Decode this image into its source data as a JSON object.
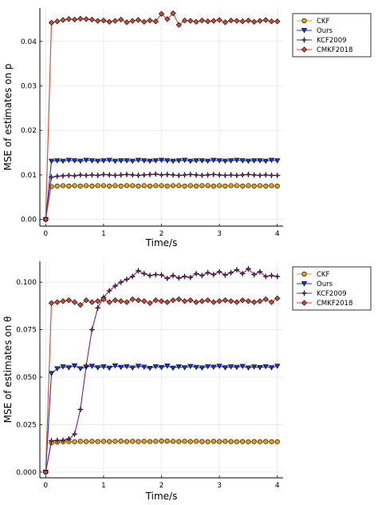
{
  "chart_data": [
    {
      "type": "line",
      "xlabel": "Time/s",
      "ylabel": "MSE of estimates on p",
      "xlim": [
        -0.1,
        4.1
      ],
      "ylim": [
        -0.0015,
        0.0475
      ],
      "xticks": [
        "0",
        "1",
        "2",
        "3",
        "4"
      ],
      "yticks": [
        "0.00",
        "0.01",
        "0.02",
        "0.03",
        "0.04"
      ],
      "ytick_values": [
        0,
        0.01,
        0.02,
        0.03,
        0.04
      ],
      "grid": true,
      "legend_position": "outside-top-right",
      "series": [
        {
          "name": "CKF",
          "color": "#e3a01c",
          "marker": "circle",
          "x": [
            0,
            0.1,
            0.2,
            0.3,
            0.4,
            0.5,
            0.6,
            0.7,
            0.8,
            0.9,
            1.0,
            1.1,
            1.2,
            1.3,
            1.4,
            1.5,
            1.6,
            1.7,
            1.8,
            1.9,
            2.0,
            2.1,
            2.2,
            2.3,
            2.4,
            2.5,
            2.6,
            2.7,
            2.8,
            2.9,
            3.0,
            3.1,
            3.2,
            3.3,
            3.4,
            3.5,
            3.6,
            3.7,
            3.8,
            3.9,
            4.0
          ],
          "y": [
            0,
            0.0074,
            0.0075,
            0.0076,
            0.0075,
            0.0076,
            0.0075,
            0.0076,
            0.0075,
            0.0076,
            0.0076,
            0.0075,
            0.0076,
            0.0075,
            0.0076,
            0.0076,
            0.0075,
            0.0076,
            0.0075,
            0.0076,
            0.0076,
            0.0075,
            0.0076,
            0.0076,
            0.0075,
            0.0076,
            0.0075,
            0.0076,
            0.0076,
            0.0075,
            0.0076,
            0.0075,
            0.0076,
            0.0076,
            0.0075,
            0.0076,
            0.0075,
            0.0076,
            0.0075,
            0.0076,
            0.0075
          ]
        },
        {
          "name": "Ours",
          "color": "#1f35c8",
          "marker": "triangle-down",
          "x": [
            0,
            0.1,
            0.2,
            0.3,
            0.4,
            0.5,
            0.6,
            0.7,
            0.8,
            0.9,
            1.0,
            1.1,
            1.2,
            1.3,
            1.4,
            1.5,
            1.6,
            1.7,
            1.8,
            1.9,
            2.0,
            2.1,
            2.2,
            2.3,
            2.4,
            2.5,
            2.6,
            2.7,
            2.8,
            2.9,
            3.0,
            3.1,
            3.2,
            3.3,
            3.4,
            3.5,
            3.6,
            3.7,
            3.8,
            3.9,
            4.0
          ],
          "y": [
            0,
            0.0131,
            0.0132,
            0.0131,
            0.0133,
            0.0132,
            0.0131,
            0.0133,
            0.0132,
            0.0131,
            0.0132,
            0.0133,
            0.0131,
            0.0132,
            0.0132,
            0.0131,
            0.0133,
            0.0132,
            0.0131,
            0.0132,
            0.0133,
            0.0132,
            0.0131,
            0.0132,
            0.0133,
            0.0131,
            0.0132,
            0.0132,
            0.0131,
            0.0133,
            0.0132,
            0.0131,
            0.0132,
            0.0133,
            0.0132,
            0.0131,
            0.0132,
            0.0132,
            0.0131,
            0.0133,
            0.0132
          ]
        },
        {
          "name": "KCF2009",
          "color": "#7a1f7a",
          "marker": "star",
          "x": [
            0,
            0.1,
            0.2,
            0.3,
            0.4,
            0.5,
            0.6,
            0.7,
            0.8,
            0.9,
            1.0,
            1.1,
            1.2,
            1.3,
            1.4,
            1.5,
            1.6,
            1.7,
            1.8,
            1.9,
            2.0,
            2.1,
            2.2,
            2.3,
            2.4,
            2.5,
            2.6,
            2.7,
            2.8,
            2.9,
            3.0,
            3.1,
            3.2,
            3.3,
            3.4,
            3.5,
            3.6,
            3.7,
            3.8,
            3.9,
            4.0
          ],
          "y": [
            0,
            0.0095,
            0.0097,
            0.0098,
            0.0099,
            0.0098,
            0.01,
            0.0099,
            0.01,
            0.0099,
            0.0101,
            0.01,
            0.0099,
            0.01,
            0.0101,
            0.01,
            0.0099,
            0.01,
            0.0101,
            0.0102,
            0.01,
            0.0101,
            0.01,
            0.0099,
            0.01,
            0.0101,
            0.01,
            0.0099,
            0.01,
            0.0101,
            0.01,
            0.0099,
            0.01,
            0.0099,
            0.01,
            0.0101,
            0.01,
            0.0099,
            0.01,
            0.0099,
            0.0099
          ]
        },
        {
          "name": "CMKF2018",
          "color": "#cf4736",
          "marker": "diamond",
          "x": [
            0,
            0.1,
            0.2,
            0.3,
            0.4,
            0.5,
            0.6,
            0.7,
            0.8,
            0.9,
            1.0,
            1.1,
            1.2,
            1.3,
            1.4,
            1.5,
            1.6,
            1.7,
            1.8,
            1.9,
            2.0,
            2.1,
            2.2,
            2.3,
            2.4,
            2.5,
            2.6,
            2.7,
            2.8,
            2.9,
            3.0,
            3.1,
            3.2,
            3.3,
            3.4,
            3.5,
            3.6,
            3.7,
            3.8,
            3.9,
            4.0
          ],
          "y": [
            0,
            0.0442,
            0.0445,
            0.0448,
            0.045,
            0.0449,
            0.0451,
            0.045,
            0.0449,
            0.0446,
            0.0447,
            0.0444,
            0.0446,
            0.0449,
            0.0443,
            0.0446,
            0.0448,
            0.0444,
            0.0447,
            0.0445,
            0.0462,
            0.045,
            0.0463,
            0.0437,
            0.0447,
            0.0446,
            0.0444,
            0.0447,
            0.0445,
            0.0446,
            0.0448,
            0.0443,
            0.0447,
            0.0446,
            0.0445,
            0.0447,
            0.0444,
            0.0446,
            0.0448,
            0.0445,
            0.0445
          ]
        }
      ]
    },
    {
      "type": "line",
      "xlabel": "Time/s",
      "ylabel": "MSE of estimates on θ",
      "xlim": [
        -0.1,
        4.1
      ],
      "ylim": [
        -0.003,
        0.111
      ],
      "xticks": [
        "0",
        "1",
        "2",
        "3",
        "4"
      ],
      "yticks": [
        "0.000",
        "0.025",
        "0.050",
        "0.075",
        "0.100"
      ],
      "ytick_values": [
        0,
        0.025,
        0.05,
        0.075,
        0.1
      ],
      "grid": true,
      "legend_position": "outside-top-right",
      "series": [
        {
          "name": "CKF",
          "color": "#e3a01c",
          "marker": "circle",
          "x": [
            0,
            0.1,
            0.2,
            0.3,
            0.4,
            0.5,
            0.6,
            0.7,
            0.8,
            0.9,
            1.0,
            1.1,
            1.2,
            1.3,
            1.4,
            1.5,
            1.6,
            1.7,
            1.8,
            1.9,
            2.0,
            2.1,
            2.2,
            2.3,
            2.4,
            2.5,
            2.6,
            2.7,
            2.8,
            2.9,
            3.0,
            3.1,
            3.2,
            3.3,
            3.4,
            3.5,
            3.6,
            3.7,
            3.8,
            3.9,
            4.0
          ],
          "y": [
            0,
            0.0155,
            0.0158,
            0.016,
            0.0161,
            0.016,
            0.0162,
            0.0161,
            0.0162,
            0.0161,
            0.0162,
            0.0161,
            0.0162,
            0.0163,
            0.0161,
            0.0162,
            0.0161,
            0.0162,
            0.0161,
            0.0162,
            0.0164,
            0.0163,
            0.0162,
            0.0161,
            0.0162,
            0.0161,
            0.0162,
            0.0161,
            0.016,
            0.0162,
            0.0161,
            0.0162,
            0.0161,
            0.016,
            0.0161,
            0.016,
            0.0161,
            0.016,
            0.0161,
            0.016,
            0.016
          ]
        },
        {
          "name": "Ours",
          "color": "#1f35c8",
          "marker": "triangle-down",
          "x": [
            0,
            0.1,
            0.2,
            0.3,
            0.4,
            0.5,
            0.6,
            0.7,
            0.8,
            0.9,
            1.0,
            1.1,
            1.2,
            1.3,
            1.4,
            1.5,
            1.6,
            1.7,
            1.8,
            1.9,
            2.0,
            2.1,
            2.2,
            2.3,
            2.4,
            2.5,
            2.6,
            2.7,
            2.8,
            2.9,
            3.0,
            3.1,
            3.2,
            3.3,
            3.4,
            3.5,
            3.6,
            3.7,
            3.8,
            3.9,
            4.0
          ],
          "y": [
            0,
            0.052,
            0.0545,
            0.0555,
            0.055,
            0.056,
            0.0545,
            0.0553,
            0.0558,
            0.055,
            0.0555,
            0.0548,
            0.056,
            0.0552,
            0.0556,
            0.0549,
            0.0558,
            0.0553,
            0.0547,
            0.0556,
            0.0551,
            0.0559,
            0.0548,
            0.0555,
            0.055,
            0.0557,
            0.0552,
            0.0549,
            0.0556,
            0.0553,
            0.0558,
            0.055,
            0.0555,
            0.0552,
            0.0557,
            0.0549,
            0.0554,
            0.0551,
            0.0556,
            0.055,
            0.0558
          ]
        },
        {
          "name": "KCF2009",
          "color": "#7a1f7a",
          "marker": "star",
          "x": [
            0,
            0.1,
            0.2,
            0.3,
            0.4,
            0.5,
            0.6,
            0.7,
            0.8,
            0.9,
            1.0,
            1.1,
            1.2,
            1.3,
            1.4,
            1.5,
            1.6,
            1.7,
            1.8,
            1.9,
            2.0,
            2.1,
            2.2,
            2.3,
            2.4,
            2.5,
            2.6,
            2.7,
            2.8,
            2.9,
            3.0,
            3.1,
            3.2,
            3.3,
            3.4,
            3.5,
            3.6,
            3.7,
            3.8,
            3.9,
            4.0
          ],
          "y": [
            0,
            0.0165,
            0.0167,
            0.0168,
            0.0175,
            0.02,
            0.033,
            0.056,
            0.075,
            0.0865,
            0.092,
            0.0955,
            0.098,
            0.1,
            0.1015,
            0.103,
            0.106,
            0.1045,
            0.1035,
            0.104,
            0.1038,
            0.102,
            0.1035,
            0.1022,
            0.103,
            0.1025,
            0.1045,
            0.1035,
            0.105,
            0.104,
            0.1055,
            0.1038,
            0.105,
            0.1065,
            0.1045,
            0.107,
            0.104,
            0.1055,
            0.103,
            0.1035,
            0.103
          ]
        },
        {
          "name": "CMKF2018",
          "color": "#cf4736",
          "marker": "diamond",
          "x": [
            0,
            0.1,
            0.2,
            0.3,
            0.4,
            0.5,
            0.6,
            0.7,
            0.8,
            0.9,
            1.0,
            1.1,
            1.2,
            1.3,
            1.4,
            1.5,
            1.6,
            1.7,
            1.8,
            1.9,
            2.0,
            2.1,
            2.2,
            2.3,
            2.4,
            2.5,
            2.6,
            2.7,
            2.8,
            2.9,
            3.0,
            3.1,
            3.2,
            3.3,
            3.4,
            3.5,
            3.6,
            3.7,
            3.8,
            3.9,
            4.0
          ],
          "y": [
            0,
            0.089,
            0.0895,
            0.09,
            0.0905,
            0.0895,
            0.088,
            0.0905,
            0.0895,
            0.09,
            0.091,
            0.0895,
            0.0905,
            0.09,
            0.0895,
            0.091,
            0.0905,
            0.09,
            0.089,
            0.0905,
            0.09,
            0.0895,
            0.0905,
            0.091,
            0.09,
            0.0905,
            0.0895,
            0.09,
            0.0905,
            0.0895,
            0.09,
            0.0905,
            0.09,
            0.0895,
            0.0905,
            0.09,
            0.0895,
            0.09,
            0.091,
            0.0895,
            0.0915
          ]
        }
      ]
    }
  ]
}
